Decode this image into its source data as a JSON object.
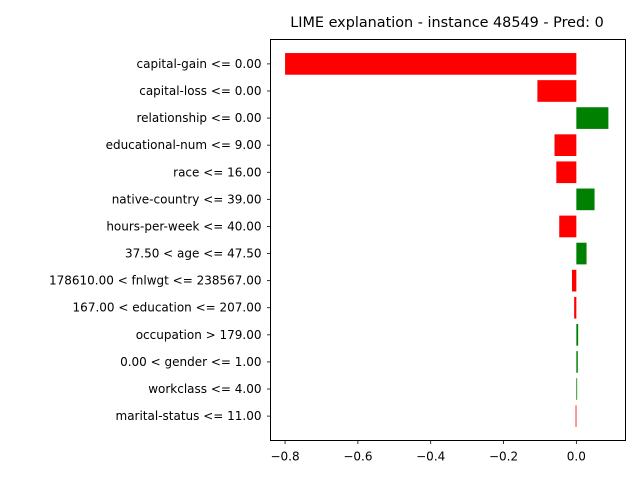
{
  "chart_data": {
    "type": "bar",
    "orientation": "horizontal",
    "title": "LIME explanation - instance 48549 - Pred: 0",
    "xlabel": "",
    "ylabel": "",
    "xlim": [
      -0.84,
      0.135
    ],
    "xticks": [
      -0.8,
      -0.6,
      -0.4,
      -0.2,
      0.0
    ],
    "xtick_labels": [
      "−0.8",
      "−0.6",
      "−0.4",
      "−0.2",
      "0.0"
    ],
    "grid": false,
    "categories": [
      "capital-gain <= 0.00",
      "capital-loss <= 0.00",
      "relationship <= 0.00",
      "educational-num <= 9.00",
      "race <= 16.00",
      "native-country <= 39.00",
      "hours-per-week <= 40.00",
      "37.50 < age <= 47.50",
      "178610.00 < fnlwgt <= 238567.00",
      "167.00 < education <= 207.00",
      "occupation > 179.00",
      "0.00 < gender <= 1.00",
      "workclass <= 4.00",
      "marital-status <= 11.00"
    ],
    "values": [
      -0.8,
      -0.107,
      0.088,
      -0.06,
      -0.055,
      0.05,
      -0.047,
      0.028,
      -0.012,
      -0.006,
      0.005,
      0.004,
      0.002,
      -0.002
    ],
    "colors": {
      "positive": "#008000",
      "negative": "#ff0000"
    }
  }
}
